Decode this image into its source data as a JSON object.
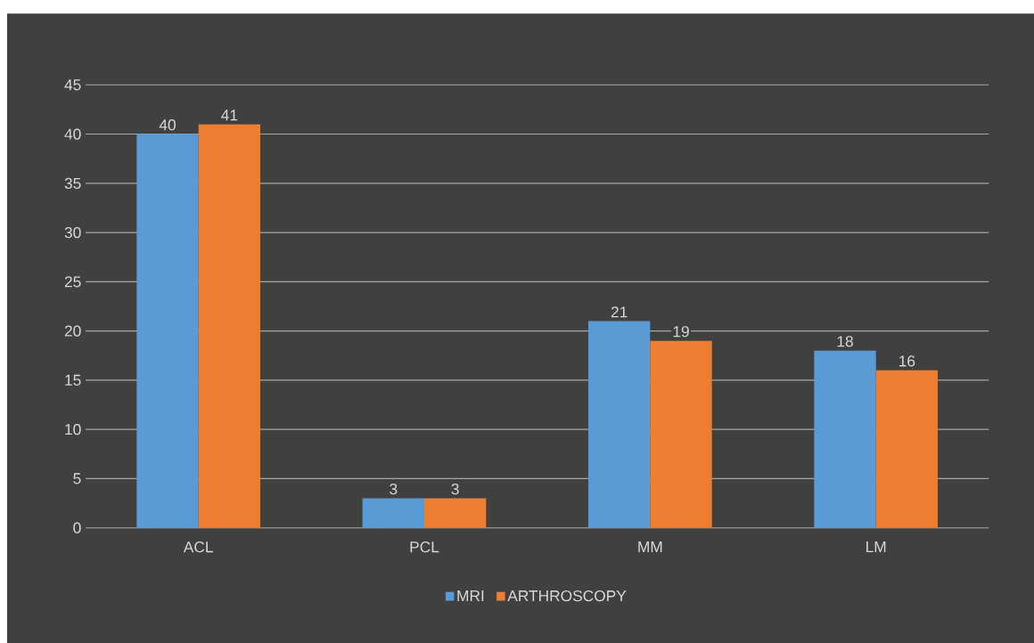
{
  "chart_data": {
    "type": "bar",
    "categories": [
      "ACL",
      "PCL",
      "MM",
      "LM"
    ],
    "series": [
      {
        "name": "MRI",
        "color": "#5b9bd5",
        "values": [
          40,
          3,
          21,
          18
        ]
      },
      {
        "name": "ARTHROSCOPY",
        "color": "#ed7d31",
        "values": [
          41,
          3,
          19,
          16
        ]
      }
    ],
    "ylim": [
      0,
      45
    ],
    "yticks": [
      0,
      5,
      10,
      15,
      20,
      25,
      30,
      35,
      40,
      45
    ],
    "grid": "y",
    "legend": "bottom",
    "data_labels": true
  }
}
